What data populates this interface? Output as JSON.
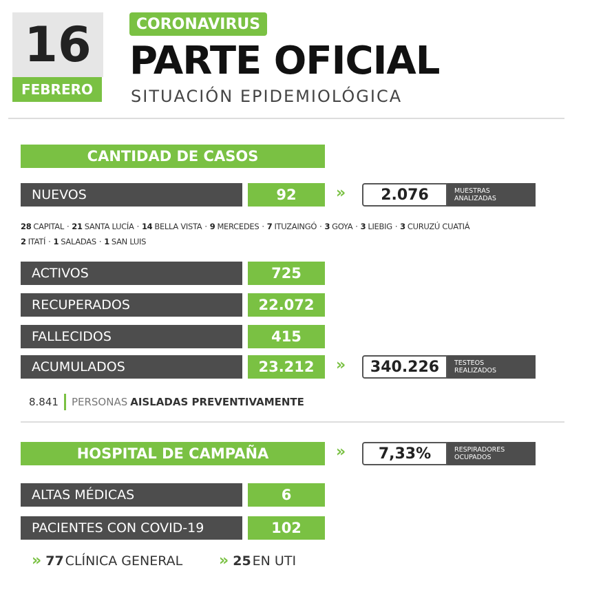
{
  "date": {
    "day": "16",
    "month": "FEBRERO"
  },
  "header": {
    "tag": "CORONAVIRUS",
    "title": "PARTE OFICIAL",
    "subtitle": "SITUACIÓN EPIDEMIOLÓGICA"
  },
  "cases": {
    "title": "CANTIDAD DE CASOS",
    "nuevos": {
      "label": "NUEVOS",
      "value": "92"
    },
    "muestras": {
      "value": "2.076",
      "label_lines": [
        "MUESTRAS",
        "ANALIZADAS"
      ]
    },
    "breakdown": [
      [
        {
          "count": "28",
          "place": "CAPITAL"
        },
        {
          "count": "21",
          "place": "SANTA LUCÍA"
        },
        {
          "count": "14",
          "place": "BELLA VISTA"
        },
        {
          "count": "9",
          "place": "MERCEDES"
        },
        {
          "count": "7",
          "place": "ITUZAINGÓ"
        },
        {
          "count": "3",
          "place": "GOYA"
        },
        {
          "count": "3",
          "place": "LIEBIG"
        },
        {
          "count": "3",
          "place": "CURUZÚ CUATIÁ"
        }
      ],
      [
        {
          "count": "2",
          "place": "ITATÍ"
        },
        {
          "count": "1",
          "place": "SALADAS"
        },
        {
          "count": "1",
          "place": "SAN LUIS"
        }
      ]
    ],
    "rows": [
      {
        "label": "ACTIVOS",
        "value": "725"
      },
      {
        "label": "RECUPERADOS",
        "value": "22.072"
      },
      {
        "label": "FALLECIDOS",
        "value": "415"
      },
      {
        "label": "ACUMULADOS",
        "value": "23.212"
      }
    ],
    "testeos": {
      "value": "340.226",
      "label_lines": [
        "TESTEOS",
        "REALIZADOS"
      ]
    },
    "aislados": {
      "value": "8.841",
      "prefix": "PERSONAS",
      "emphasis": "AISLADAS PREVENTIVAMENTE"
    }
  },
  "hospital": {
    "title": "HOSPITAL DE CAMPAÑA",
    "respiradores": {
      "value": "7,33%",
      "label_lines": [
        "RESPIRADORES",
        "OCUPADOS"
      ]
    },
    "rows": [
      {
        "label": "ALTAS MÉDICAS",
        "value": "6"
      },
      {
        "label": "PACIENTES CON COVID-19",
        "value": "102"
      }
    ],
    "breakdown": [
      {
        "count": "77",
        "label": "CLÍNICA GENERAL"
      },
      {
        "count": "25",
        "label": "EN UTI"
      }
    ]
  }
}
